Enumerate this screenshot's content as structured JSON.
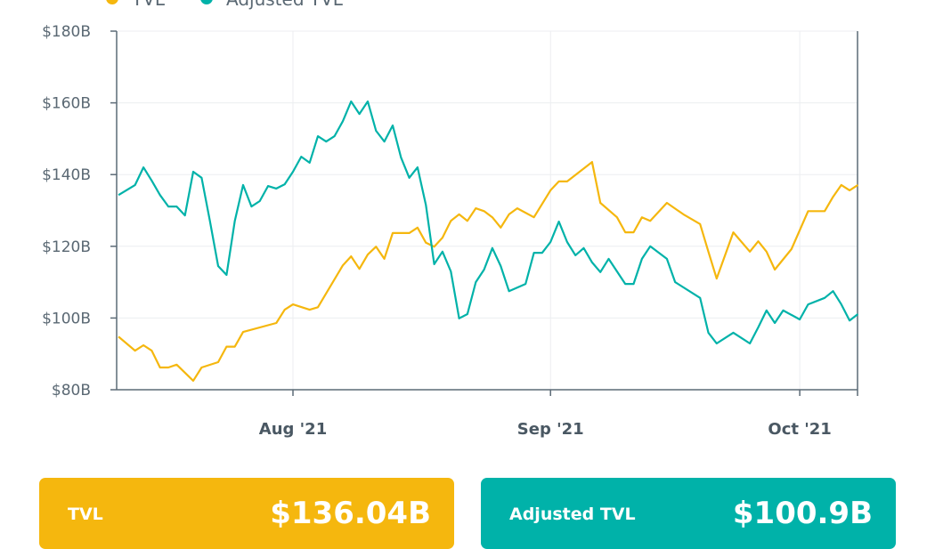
{
  "chart_data": {
    "type": "line",
    "title": "",
    "xlabel": "",
    "ylabel": "",
    "ylim": [
      80,
      180
    ],
    "y_ticks": [
      "$80B",
      "$100B",
      "$120B",
      "$140B",
      "$160B",
      "$180B"
    ],
    "y_tick_values": [
      80,
      100,
      120,
      140,
      160,
      180
    ],
    "x_ticks": [
      "Aug '21",
      "Sep '21",
      "Oct '21"
    ],
    "x_tick_dates": [
      "2021-08-01",
      "2021-09-01",
      "2021-10-01"
    ],
    "xlim": [
      "2021-07-11",
      "2021-10-08"
    ],
    "grid": true,
    "legend": "top-left",
    "series": [
      {
        "name": "TVL",
        "color": "#F5B70E",
        "points": [
          [
            "2021-07-11",
            94.8
          ],
          [
            "2021-07-13",
            90.9
          ],
          [
            "2021-07-14",
            92.4
          ],
          [
            "2021-07-15",
            90.9
          ],
          [
            "2021-07-16",
            86.2
          ],
          [
            "2021-07-17",
            86.2
          ],
          [
            "2021-07-18",
            87.0
          ],
          [
            "2021-07-20",
            82.5
          ],
          [
            "2021-07-21",
            86.2
          ],
          [
            "2021-07-23",
            87.7
          ],
          [
            "2021-07-24",
            92.0
          ],
          [
            "2021-07-25",
            92.0
          ],
          [
            "2021-07-26",
            96.1
          ],
          [
            "2021-07-30",
            98.6
          ],
          [
            "2021-07-31",
            102.3
          ],
          [
            "2021-08-01",
            103.8
          ],
          [
            "2021-08-03",
            102.3
          ],
          [
            "2021-08-04",
            103.0
          ],
          [
            "2021-08-07",
            114.7
          ],
          [
            "2021-08-08",
            117.2
          ],
          [
            "2021-08-09",
            113.7
          ],
          [
            "2021-08-10",
            117.7
          ],
          [
            "2021-08-11",
            119.9
          ],
          [
            "2021-08-12",
            116.5
          ],
          [
            "2021-08-13",
            123.7
          ],
          [
            "2021-08-15",
            123.7
          ],
          [
            "2021-08-16",
            125.2
          ],
          [
            "2021-08-17",
            121.0
          ],
          [
            "2021-08-18",
            119.9
          ],
          [
            "2021-08-19",
            122.4
          ],
          [
            "2021-08-20",
            127.1
          ],
          [
            "2021-08-21",
            128.9
          ],
          [
            "2021-08-22",
            127.1
          ],
          [
            "2021-08-23",
            130.6
          ],
          [
            "2021-08-24",
            129.8
          ],
          [
            "2021-08-25",
            128.1
          ],
          [
            "2021-08-26",
            125.2
          ],
          [
            "2021-08-27",
            128.9
          ],
          [
            "2021-08-28",
            130.6
          ],
          [
            "2021-08-30",
            128.1
          ],
          [
            "2021-09-01",
            135.6
          ],
          [
            "2021-09-02",
            138.1
          ],
          [
            "2021-09-03",
            138.1
          ],
          [
            "2021-09-06",
            143.5
          ],
          [
            "2021-09-07",
            132.1
          ],
          [
            "2021-09-09",
            128.1
          ],
          [
            "2021-09-10",
            123.9
          ],
          [
            "2021-09-11",
            123.9
          ],
          [
            "2021-09-12",
            128.1
          ],
          [
            "2021-09-13",
            127.1
          ],
          [
            "2021-09-15",
            132.1
          ],
          [
            "2021-09-17",
            128.9
          ],
          [
            "2021-09-19",
            126.2
          ],
          [
            "2021-09-20",
            118.5
          ],
          [
            "2021-09-21",
            111.0
          ],
          [
            "2021-09-23",
            123.9
          ],
          [
            "2021-09-25",
            118.5
          ],
          [
            "2021-09-26",
            121.4
          ],
          [
            "2021-09-27",
            118.5
          ],
          [
            "2021-09-28",
            113.5
          ],
          [
            "2021-09-30",
            119.2
          ],
          [
            "2021-10-02",
            129.8
          ],
          [
            "2021-10-04",
            129.8
          ],
          [
            "2021-10-05",
            133.8
          ],
          [
            "2021-10-06",
            137.1
          ],
          [
            "2021-10-07",
            135.6
          ],
          [
            "2021-10-08",
            137.1
          ]
        ]
      },
      {
        "name": "Adjusted TVL",
        "color": "#00B2A9",
        "points": [
          [
            "2021-07-11",
            134.3
          ],
          [
            "2021-07-13",
            137.1
          ],
          [
            "2021-07-14",
            142.0
          ],
          [
            "2021-07-15",
            138.3
          ],
          [
            "2021-07-16",
            134.3
          ],
          [
            "2021-07-17",
            131.1
          ],
          [
            "2021-07-18",
            131.1
          ],
          [
            "2021-07-19",
            128.6
          ],
          [
            "2021-07-20",
            140.8
          ],
          [
            "2021-07-21",
            139.1
          ],
          [
            "2021-07-22",
            127.1
          ],
          [
            "2021-07-23",
            114.5
          ],
          [
            "2021-07-24",
            112.0
          ],
          [
            "2021-07-25",
            127.1
          ],
          [
            "2021-07-26",
            137.1
          ],
          [
            "2021-07-27",
            131.1
          ],
          [
            "2021-07-28",
            132.6
          ],
          [
            "2021-07-29",
            136.8
          ],
          [
            "2021-07-30",
            136.1
          ],
          [
            "2021-07-31",
            137.3
          ],
          [
            "2021-08-01",
            140.8
          ],
          [
            "2021-08-02",
            145.0
          ],
          [
            "2021-08-03",
            143.3
          ],
          [
            "2021-08-04",
            150.7
          ],
          [
            "2021-08-05",
            149.2
          ],
          [
            "2021-08-06",
            150.7
          ],
          [
            "2021-08-07",
            154.9
          ],
          [
            "2021-08-08",
            160.4
          ],
          [
            "2021-08-09",
            156.9
          ],
          [
            "2021-08-10",
            160.4
          ],
          [
            "2021-08-11",
            152.2
          ],
          [
            "2021-08-12",
            149.2
          ],
          [
            "2021-08-13",
            153.7
          ],
          [
            "2021-08-14",
            144.8
          ],
          [
            "2021-08-15",
            139.1
          ],
          [
            "2021-08-16",
            142.0
          ],
          [
            "2021-08-17",
            131.5
          ],
          [
            "2021-08-18",
            115.0
          ],
          [
            "2021-08-19",
            118.5
          ],
          [
            "2021-08-20",
            113.0
          ],
          [
            "2021-08-21",
            99.9
          ],
          [
            "2021-08-22",
            101.1
          ],
          [
            "2021-08-23",
            110.0
          ],
          [
            "2021-08-24",
            113.5
          ],
          [
            "2021-08-25",
            119.5
          ],
          [
            "2021-08-26",
            114.5
          ],
          [
            "2021-08-27",
            107.5
          ],
          [
            "2021-08-29",
            109.5
          ],
          [
            "2021-08-30",
            118.2
          ],
          [
            "2021-08-31",
            118.2
          ],
          [
            "2021-09-01",
            121.2
          ],
          [
            "2021-09-02",
            126.9
          ],
          [
            "2021-09-03",
            121.2
          ],
          [
            "2021-09-04",
            117.5
          ],
          [
            "2021-09-05",
            119.5
          ],
          [
            "2021-09-06",
            115.5
          ],
          [
            "2021-09-07",
            112.8
          ],
          [
            "2021-09-08",
            116.5
          ],
          [
            "2021-09-10",
            109.5
          ],
          [
            "2021-09-11",
            109.5
          ],
          [
            "2021-09-12",
            116.5
          ],
          [
            "2021-09-13",
            120.0
          ],
          [
            "2021-09-15",
            116.5
          ],
          [
            "2021-09-16",
            110.0
          ],
          [
            "2021-09-19",
            105.6
          ],
          [
            "2021-09-20",
            95.9
          ],
          [
            "2021-09-21",
            92.9
          ],
          [
            "2021-09-23",
            95.9
          ],
          [
            "2021-09-25",
            92.9
          ],
          [
            "2021-09-26",
            97.4
          ],
          [
            "2021-09-27",
            102.1
          ],
          [
            "2021-09-28",
            98.6
          ],
          [
            "2021-09-29",
            102.1
          ],
          [
            "2021-10-01",
            99.6
          ],
          [
            "2021-10-02",
            103.8
          ],
          [
            "2021-10-04",
            105.6
          ],
          [
            "2021-10-05",
            107.5
          ],
          [
            "2021-10-06",
            103.8
          ],
          [
            "2021-10-07",
            99.3
          ],
          [
            "2021-10-08",
            101.1
          ]
        ]
      }
    ]
  },
  "legend": {
    "items": [
      {
        "label": "TVL",
        "color": "#F5B70E"
      },
      {
        "label": "Adjusted TVL",
        "color": "#00B2A9"
      }
    ]
  },
  "cards": [
    {
      "label": "TVL",
      "value": "$136.04B",
      "color": "#F5B70E"
    },
    {
      "label": "Adjusted TVL",
      "value": "$100.9B",
      "color": "#00B2A9"
    }
  ]
}
